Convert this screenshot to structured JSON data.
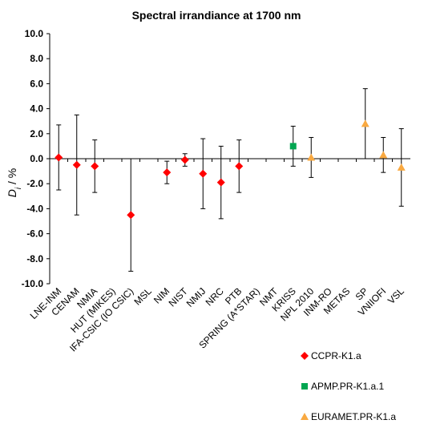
{
  "chart_data": {
    "type": "errorbar",
    "title": "Spectral irrandiance at 1700 nm",
    "ylabel_parts": [
      "D",
      "i",
      " / %"
    ],
    "categories": [
      "LNE-INM",
      "CENAM",
      "NMIA",
      "HUT (MIKES)",
      "IFA-CSIC (IO CSIC)",
      "MSL",
      "NIM",
      "NIST",
      "NMIJ",
      "NRC",
      "PTB",
      "SPRING (A*STAR)",
      "NMT",
      "KRISS",
      "NPL 2010",
      "INM-RO",
      "METAS",
      "SP",
      "VNIIOFI",
      "VSL"
    ],
    "series": [
      {
        "name": "CCPR-K1.a",
        "color": "#ff0000",
        "marker": "diamond",
        "values": [
          0.1,
          -0.5,
          -0.6,
          null,
          -4.5,
          null,
          -1.1,
          -0.1,
          -1.2,
          -1.9,
          -0.6,
          null,
          null,
          null,
          null,
          null,
          null,
          null,
          null,
          null
        ],
        "errors": [
          2.6,
          4.0,
          2.1,
          null,
          4.5,
          null,
          0.9,
          0.5,
          2.8,
          2.9,
          2.1,
          null,
          null,
          null,
          null,
          null,
          null,
          null,
          null,
          null
        ]
      },
      {
        "name": "APMP.PR-K1.a.1",
        "color": "#00a651",
        "marker": "square",
        "values": [
          null,
          null,
          null,
          null,
          null,
          null,
          null,
          null,
          null,
          null,
          null,
          null,
          null,
          1.0,
          null,
          null,
          null,
          null,
          null,
          null
        ],
        "errors": [
          null,
          null,
          null,
          null,
          null,
          null,
          null,
          null,
          null,
          null,
          null,
          null,
          null,
          1.6,
          null,
          null,
          null,
          null,
          null,
          null
        ]
      },
      {
        "name": "EURAMET.PR-K1.a",
        "color": "#f9a941",
        "marker": "triangle",
        "values": [
          null,
          null,
          null,
          null,
          null,
          null,
          null,
          null,
          null,
          null,
          null,
          null,
          null,
          null,
          0.1,
          null,
          null,
          2.8,
          0.3,
          -0.7
        ],
        "errors": [
          null,
          null,
          null,
          null,
          null,
          null,
          null,
          null,
          null,
          null,
          null,
          null,
          null,
          null,
          1.6,
          null,
          null,
          2.8,
          1.4,
          3.1
        ]
      }
    ],
    "ylim": [
      -10,
      10
    ],
    "yticks": [
      {
        "value": -10,
        "label": "-10.0"
      },
      {
        "value": -8,
        "label": "-8.0"
      },
      {
        "value": -6,
        "label": "-6.0"
      },
      {
        "value": -4,
        "label": "-4.0"
      },
      {
        "value": -2,
        "label": "-2.0"
      },
      {
        "value": 0,
        "label": "0.0"
      },
      {
        "value": 2,
        "label": "2.0"
      },
      {
        "value": 4,
        "label": "4.0"
      },
      {
        "value": 6,
        "label": "6.0"
      },
      {
        "value": 8,
        "label": "8.0"
      },
      {
        "value": 10,
        "label": "10.0"
      }
    ],
    "grid": false,
    "legend": "lower right"
  }
}
